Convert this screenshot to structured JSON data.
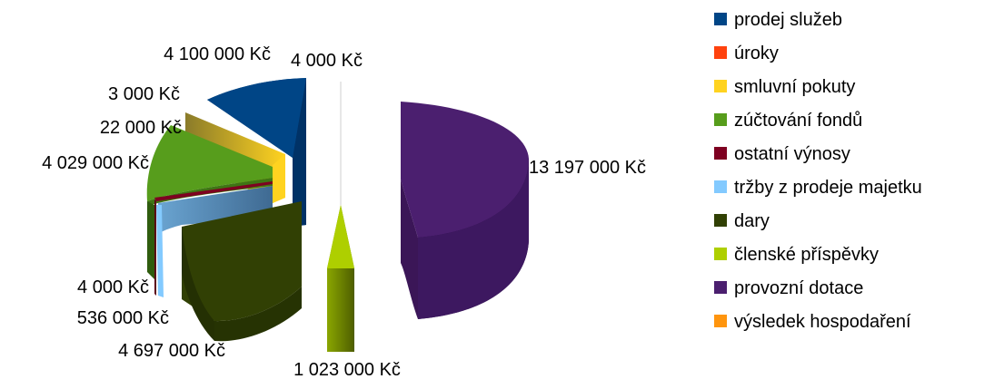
{
  "chart_data": {
    "type": "pie",
    "style": "3d-exploded",
    "currency": "Kč",
    "legend_position": "right",
    "slices": [
      {
        "name": "prodej služeb",
        "value": 4100000,
        "label": "4 100 000 Kč",
        "color": "#004586"
      },
      {
        "name": "úroky",
        "value": 4000,
        "label": "4 000 Kč",
        "color": "#ff420e"
      },
      {
        "name": "smluvní pokuty",
        "value": 3000,
        "label": "3 000 Kč",
        "color": "#ffd320"
      },
      {
        "name": "zúčtování fondů",
        "value": 22000,
        "label": "22 000 Kč",
        "color": "#579d1c"
      },
      {
        "name": "ostatní výnosy",
        "value": 4029000,
        "label": "4 029 000 Kč",
        "color": "#7e0021"
      },
      {
        "name": "tržby z prodeje majetku",
        "value": 4000,
        "label": "4 000 Kč",
        "color": "#83caff"
      },
      {
        "name": "dary",
        "value": 536000,
        "label": "536 000 Kč",
        "color": "#314004"
      },
      {
        "name": "členské příspěvky",
        "value": 4697000,
        "label": "4 697 000 Kč",
        "color": "#aecf00"
      },
      {
        "name": "provozní dotace",
        "value": 1023000,
        "label": "1 023 000 Kč",
        "color": "#4b1f6f"
      },
      {
        "name": "výsledek hospodaření",
        "value": 13197000,
        "label": "13 197 000 Kč",
        "color": "#ff950e"
      }
    ]
  }
}
